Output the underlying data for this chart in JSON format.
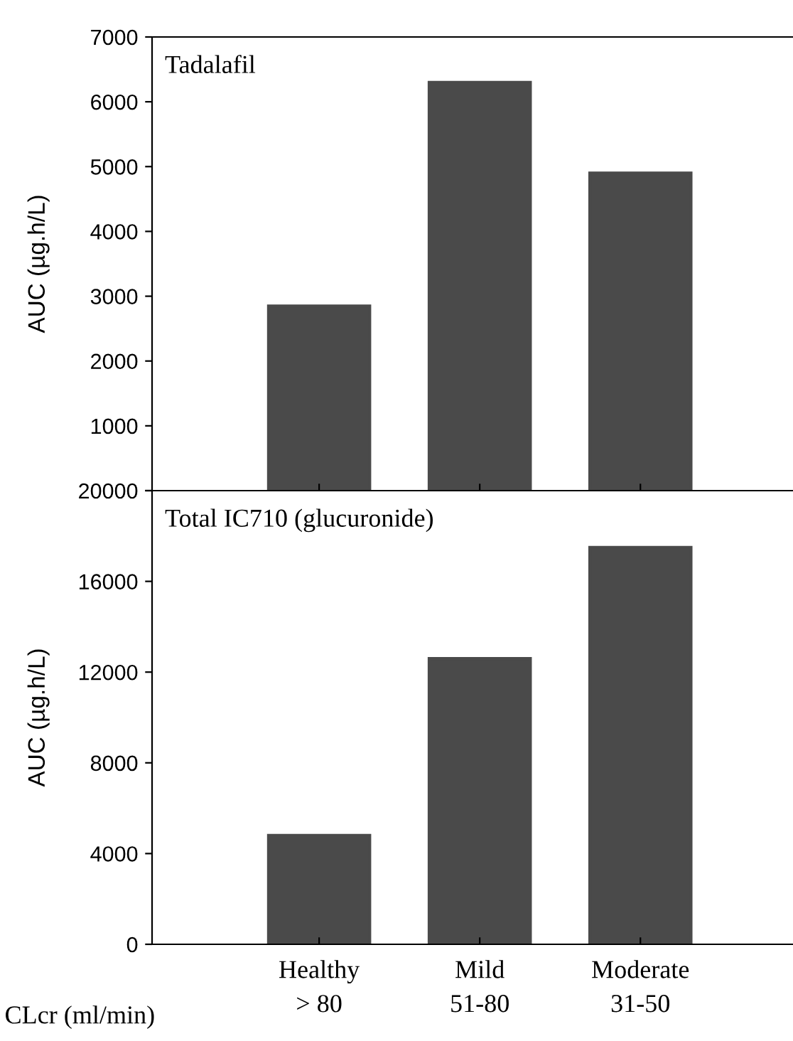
{
  "chart_data": [
    {
      "type": "bar",
      "title": "Tadalafil",
      "ylabel": "AUC (µg.h/L)",
      "categories": [
        null,
        null,
        null
      ],
      "values": [
        2850,
        6300,
        4900
      ],
      "color": "#4a4a4a",
      "ylim": [
        0,
        7000
      ],
      "yticks": [
        {
          "value": 0,
          "label": null
        },
        1000,
        2000,
        3000,
        4000,
        5000,
        6000,
        7000
      ],
      "grid": false,
      "legend": false
    },
    {
      "type": "bar",
      "title": "Total IC710 (glucuronide)",
      "ylabel": "AUC (µg.h/L)",
      "categories": [
        "Healthy\n> 80",
        "Mild\n51-80",
        "Moderate\n31-50"
      ],
      "values": [
        4800,
        12600,
        17500
      ],
      "color": "#4a4a4a",
      "ylim": [
        0,
        20000
      ],
      "yticks": [
        0,
        4000,
        8000,
        12000,
        16000,
        20000
      ],
      "grid": false,
      "legend": false,
      "annotations": [
        "CLcr (ml/min)"
      ]
    }
  ]
}
